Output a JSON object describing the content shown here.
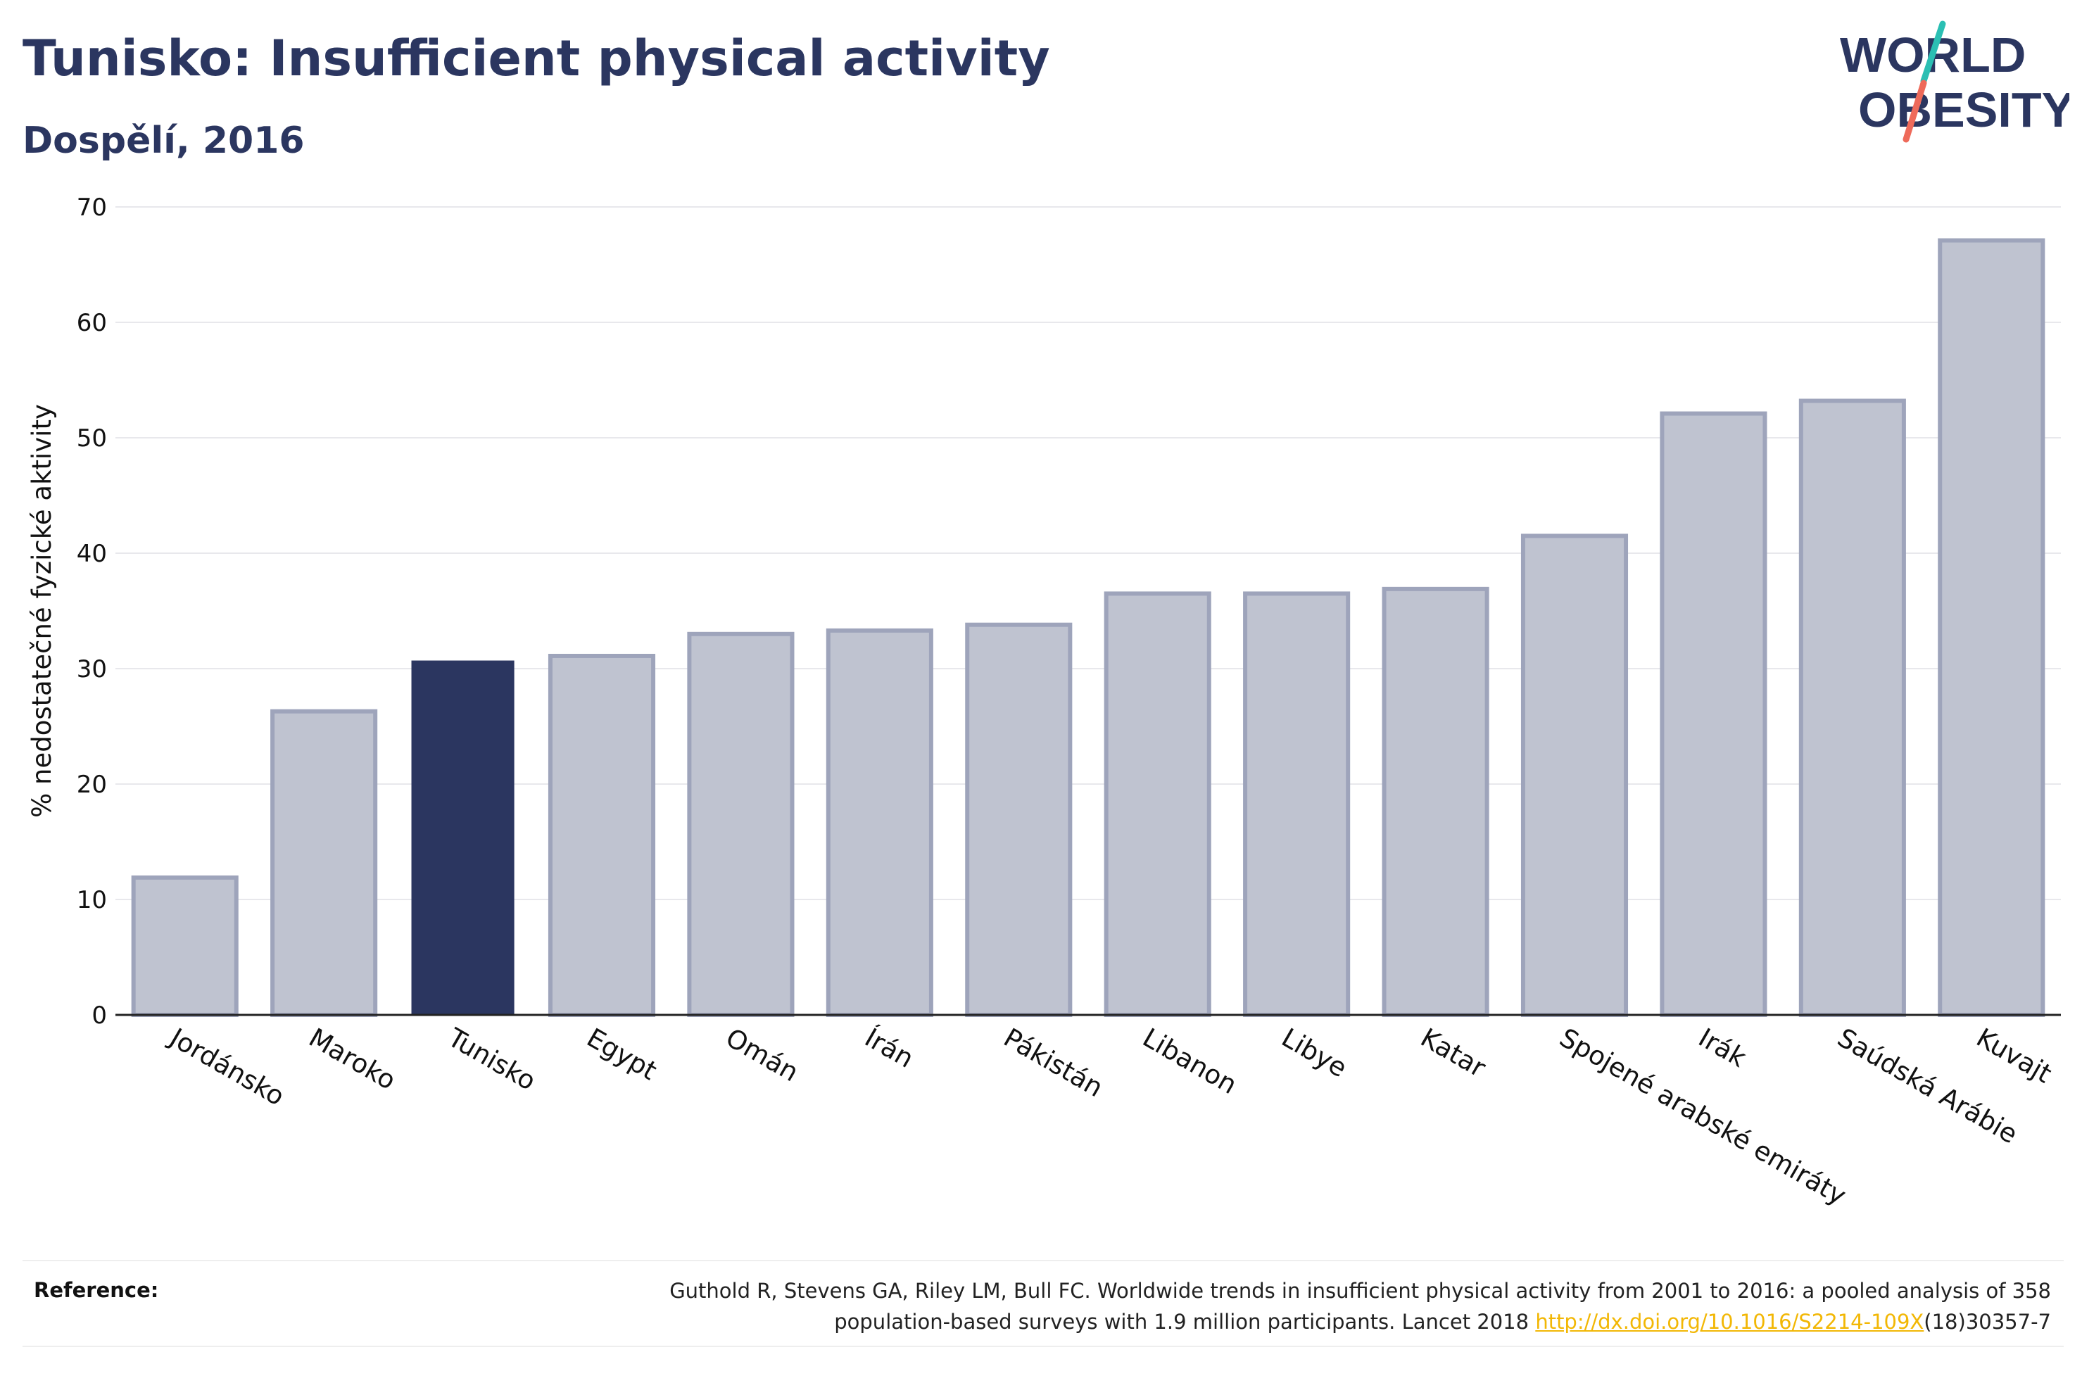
{
  "title": "Tunisko: Insufficient physical activity",
  "subtitle": "Dospělí, 2016",
  "logo": {
    "line1": "WORLD",
    "line2": "OBESITY"
  },
  "colors": {
    "title": "#2b3660",
    "highlight_bar": "#2b3660",
    "bar_fill": "#bfc3d0",
    "bar_stroke": "#9ea4bb",
    "logo_teal": "#2bbfb3",
    "logo_coral": "#ee6a5a",
    "link": "#f2b705"
  },
  "chart_data": {
    "type": "bar",
    "ylabel": "% nedostatečné fyzické aktivity",
    "xlabel": "",
    "ylim": [
      0,
      70
    ],
    "yticks": [
      0,
      10,
      20,
      30,
      40,
      50,
      60,
      70
    ],
    "grid": true,
    "highlight": "Tunisko",
    "categories": [
      "Jordánsko",
      "Maroko",
      "Tunisko",
      "Egypt",
      "Omán",
      "Írán",
      "Pákistán",
      "Libanon",
      "Libye",
      "Katar",
      "Spojené arabské emiráty",
      "Irák",
      "Saúdská Arábie",
      "Kuvajt"
    ],
    "values": [
      11.9,
      26.3,
      30.7,
      31.1,
      33.0,
      33.3,
      33.8,
      36.5,
      36.5,
      36.9,
      41.5,
      52.1,
      53.2,
      67.1
    ]
  },
  "reference": {
    "label": "Reference:",
    "text_line1": "Guthold R, Stevens GA, Riley LM, Bull FC. Worldwide trends in insufficient physical activity from 2001 to 2016: a pooled analysis of 358",
    "text_line2_before": "population-based surveys with 1.9 million participants. Lancet 2018 ",
    "link": "http://dx.doi.org/10.1016/S2214-109X",
    "text_line2_after": "(18)30357-7"
  }
}
